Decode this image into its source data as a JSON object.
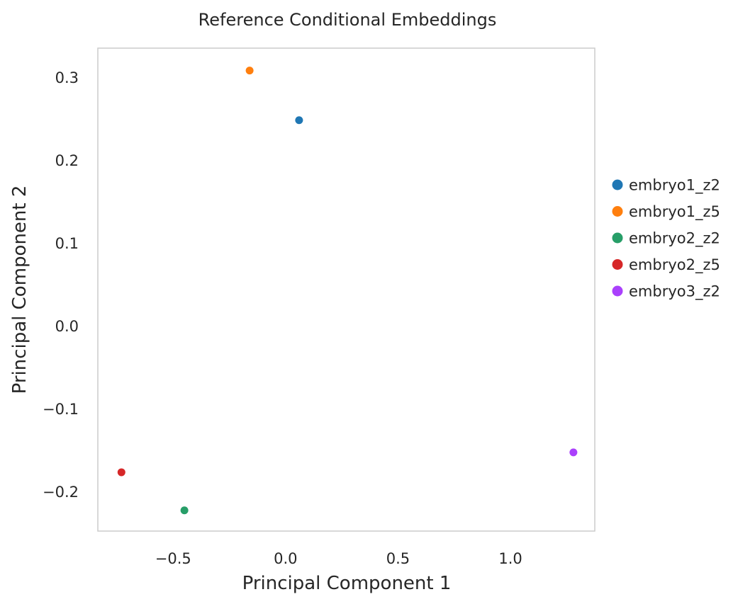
{
  "chart_data": {
    "type": "scatter",
    "title": "Reference Conditional Embeddings",
    "xlabel": "Principal Component 1",
    "ylabel": "Principal Component 2",
    "xlim": [
      -0.835,
      1.375
    ],
    "ylim": [
      -0.248,
      0.335
    ],
    "xticks": [
      -0.5,
      0.0,
      0.5,
      1.0
    ],
    "xtick_labels": [
      "−0.5",
      "0.0",
      "0.5",
      "1.0"
    ],
    "yticks": [
      -0.2,
      -0.1,
      0.0,
      0.1,
      0.2,
      0.3
    ],
    "ytick_labels": [
      "−0.2",
      "−0.1",
      "0.0",
      "0.1",
      "0.2",
      "0.3"
    ],
    "grid": false,
    "legend_position": "right-outside",
    "series": [
      {
        "name": "embryo1_z2",
        "color": "#1f77b4",
        "points": [
          {
            "x": 0.06,
            "y": 0.248
          }
        ]
      },
      {
        "name": "embryo1_z5",
        "color": "#ff7f0e",
        "points": [
          {
            "x": -0.16,
            "y": 0.308
          }
        ]
      },
      {
        "name": "embryo2_z2",
        "color": "#279e68",
        "points": [
          {
            "x": -0.45,
            "y": -0.223
          }
        ]
      },
      {
        "name": "embryo2_z5",
        "color": "#d62728",
        "points": [
          {
            "x": -0.73,
            "y": -0.177
          }
        ]
      },
      {
        "name": "embryo3_z2",
        "color": "#aa40fc",
        "points": [
          {
            "x": 1.28,
            "y": -0.153
          }
        ]
      }
    ]
  }
}
